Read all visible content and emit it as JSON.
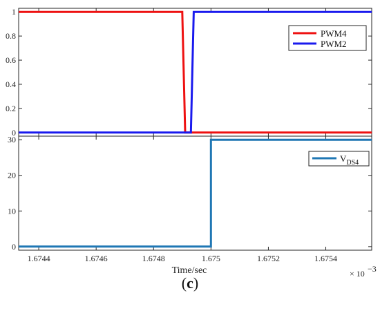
{
  "caption": {
    "open": "(",
    "letter": "c",
    "close": ")"
  },
  "chart_data": [
    {
      "type": "line",
      "x_exponent_label": "× 10",
      "x_exponent_power": "−3",
      "xlim": [
        1.67433,
        1.67556
      ],
      "ylim": [
        -0.03,
        1.03
      ],
      "yticks": [
        "0",
        "0.2",
        "0.4",
        "0.6",
        "0.8",
        "1"
      ],
      "ytick_values": [
        0,
        0.2,
        0.4,
        0.6,
        0.8,
        1
      ],
      "grid": false,
      "legend_position": "top-right",
      "series": [
        {
          "name": "PWM4",
          "color": "#ee1111",
          "x": [
            1.67433,
            1.6749,
            1.67491,
            1.67556
          ],
          "y": [
            1,
            1,
            0,
            0
          ]
        },
        {
          "name": "PWM2",
          "color": "#1a1aee",
          "x": [
            1.67433,
            1.67493,
            1.67494,
            1.67556
          ],
          "y": [
            0,
            0,
            1,
            1
          ]
        }
      ]
    },
    {
      "type": "line",
      "xlabel": "Time/sec",
      "xlim": [
        1.67433,
        1.67556
      ],
      "ylim": [
        -1,
        31
      ],
      "xticks": [
        "1.6744",
        "1.6746",
        "1.6748",
        "1.675",
        "1.6752",
        "1.6754"
      ],
      "xtick_values": [
        1.6744,
        1.6746,
        1.6748,
        1.675,
        1.6752,
        1.6754
      ],
      "yticks": [
        "0",
        "10",
        "20",
        "30"
      ],
      "ytick_values": [
        0,
        10,
        20,
        30
      ],
      "grid": false,
      "legend_position": "top-right",
      "series": [
        {
          "name": "V",
          "name_subscript": "DS4",
          "color": "#1f77b4",
          "x": [
            1.67433,
            1.675,
            1.675,
            1.67556
          ],
          "y": [
            0,
            0,
            30,
            30
          ]
        }
      ]
    }
  ]
}
